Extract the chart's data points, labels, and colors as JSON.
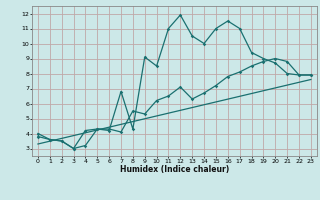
{
  "xlabel": "Humidex (Indice chaleur)",
  "background_color": "#cce8e8",
  "grid_color": "#c0a8a8",
  "line_color": "#1a7070",
  "xlim": [
    -0.5,
    23.5
  ],
  "ylim": [
    2.5,
    12.5
  ],
  "xticks": [
    0,
    1,
    2,
    3,
    4,
    5,
    6,
    7,
    8,
    9,
    10,
    11,
    12,
    13,
    14,
    15,
    16,
    17,
    18,
    19,
    20,
    21,
    22,
    23
  ],
  "yticks": [
    3,
    4,
    5,
    6,
    7,
    8,
    9,
    10,
    11,
    12
  ],
  "line1_x": [
    0,
    1,
    2,
    3,
    4,
    5,
    6,
    7,
    8,
    9,
    10,
    11,
    12,
    13,
    14,
    15,
    16,
    17,
    18,
    19,
    20,
    21,
    22,
    23
  ],
  "line1_y": [
    4.0,
    3.6,
    3.5,
    3.0,
    4.2,
    4.3,
    4.2,
    6.8,
    4.3,
    9.1,
    8.5,
    11.0,
    11.9,
    10.5,
    10.0,
    11.0,
    11.5,
    11.0,
    9.4,
    9.0,
    8.7,
    8.0,
    7.9,
    7.9
  ],
  "line2_x": [
    0,
    1,
    2,
    3,
    4,
    5,
    6,
    7,
    8,
    9,
    10,
    11,
    12,
    13,
    14,
    15,
    16,
    17,
    18,
    19,
    20,
    21,
    22,
    23
  ],
  "line2_y": [
    3.8,
    3.6,
    3.5,
    3.0,
    3.2,
    4.3,
    4.3,
    4.1,
    5.5,
    5.3,
    6.2,
    6.5,
    7.1,
    6.3,
    6.7,
    7.2,
    7.8,
    8.1,
    8.5,
    8.8,
    9.0,
    8.8,
    7.9,
    7.9
  ],
  "line3_x": [
    0,
    23
  ],
  "line3_y": [
    3.3,
    7.6
  ]
}
